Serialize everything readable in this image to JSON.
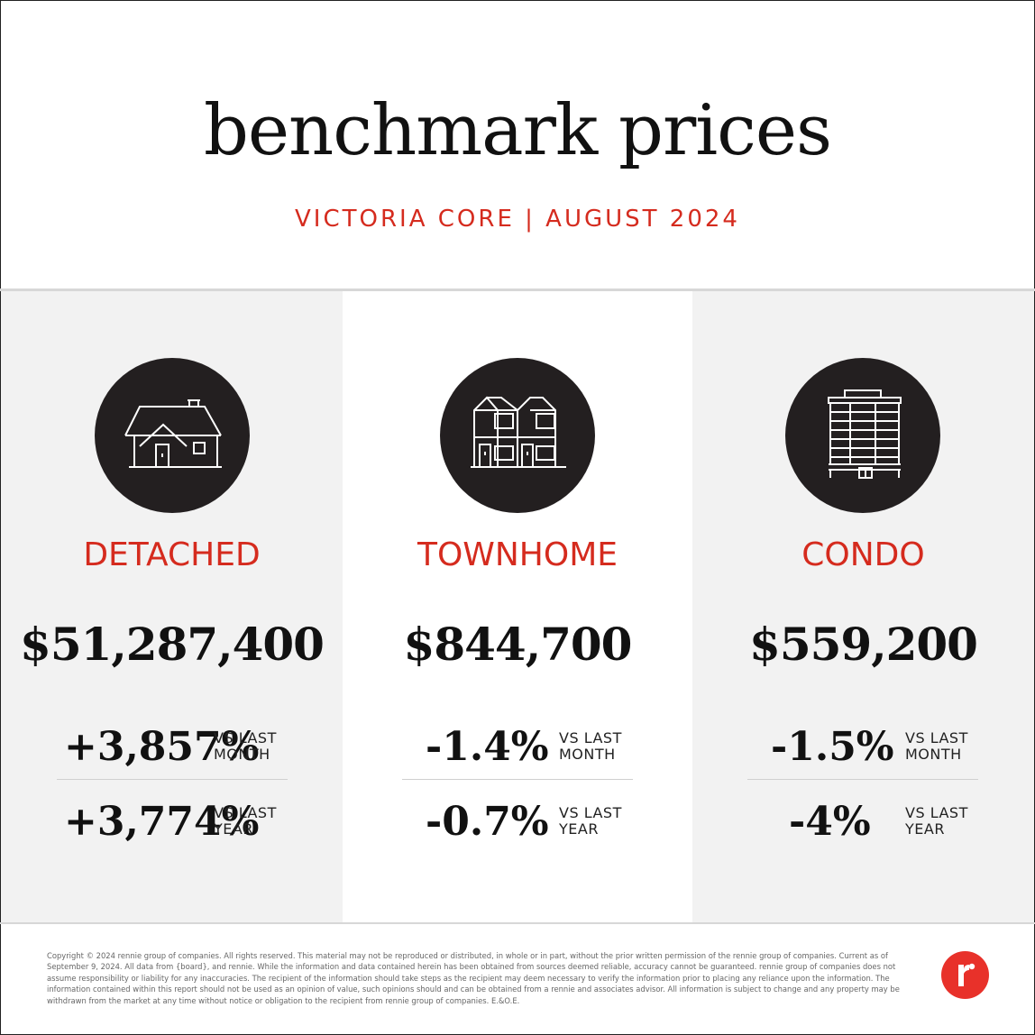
{
  "header": {
    "title": "benchmark prices",
    "subtitle": "VICTORIA CORE | AUGUST 2024"
  },
  "columns": [
    {
      "label": "DETACHED",
      "icon": "house-icon",
      "price": "$51,287,400",
      "month_change": "+3,857%",
      "month_label_1": "VS LAST",
      "month_label_2": "MONTH",
      "year_change": "+3,774%",
      "year_label_1": "VS LAST",
      "year_label_2": "YEAR"
    },
    {
      "label": "TOWNHOME",
      "icon": "townhome-icon",
      "price": "$844,700",
      "month_change": "-1.4%",
      "month_label_1": "VS LAST",
      "month_label_2": "MONTH",
      "year_change": "-0.7%",
      "year_label_1": "VS LAST",
      "year_label_2": "YEAR"
    },
    {
      "label": "CONDO",
      "icon": "condo-building-icon",
      "price": "$559,200",
      "month_change": "-1.5%",
      "month_label_1": "VS LAST",
      "month_label_2": "MONTH",
      "year_change": "-4%",
      "year_label_1": "VS LAST",
      "year_label_2": "YEAR"
    }
  ],
  "footer": {
    "disclaimer": "Copyright © 2024 rennie group of companies. All rights reserved. This material may not be reproduced or distributed, in whole or in part, without the prior written permission of the rennie group of companies. Current as of September 9, 2024. All data from {board}, and rennie. While the information and data contained herein has been obtained from sources deemed reliable, accuracy cannot be guaranteed. rennie group of companies does not assume responsibility or liability for any inaccuracies. The recipient of the information should take steps as the recipient may deem necessary to verify the information prior to placing any reliance upon the information. The information contained within this report should not be used as an opinion of value, such opinions should and can be obtained from a rennie and associates advisor. All information is subject to change and any property may be withdrawn from the market at any time without notice or obligation to the recipient from rennie group of companies. E.&O.E.",
    "logo": "rennie-logo-icon"
  },
  "colors": {
    "accent": "#d52b1e",
    "icon_bg": "#231f20",
    "panel_bg": "#f2f2f2",
    "logo": "#e8312a"
  }
}
